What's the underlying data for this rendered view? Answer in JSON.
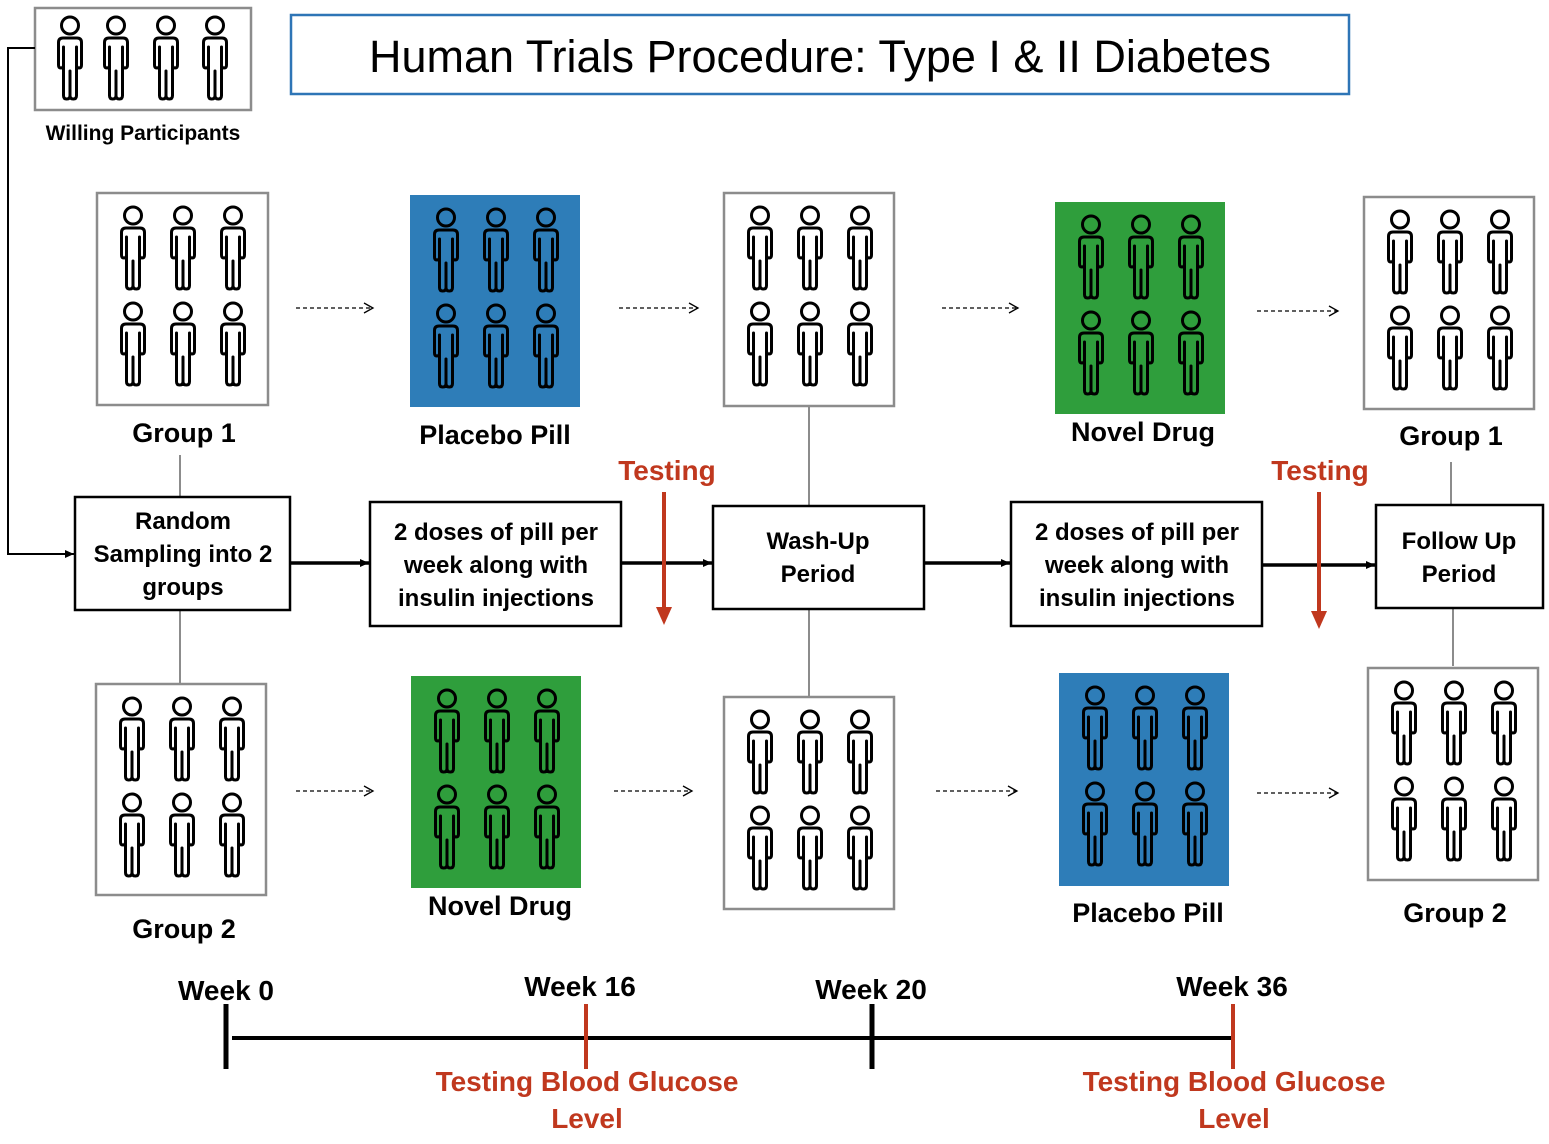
{
  "title": "Human Trials Procedure: Type I & II Diabetes",
  "participants_label": "Willing Participants",
  "group_labels": {
    "group1_start": "Group 1",
    "group2_start": "Group 2",
    "group1_end": "Group 1",
    "group2_end": "Group 2"
  },
  "treatment_labels": {
    "top_first": "Placebo Pill",
    "top_second": "Novel Drug",
    "bottom_first": "Novel Drug",
    "bottom_second": "Placebo Pill"
  },
  "process_steps": {
    "random_sampling": [
      "Random",
      "Sampling into 2",
      "groups"
    ],
    "dosing_1": [
      "2 doses of pill per",
      "week along with",
      "insulin injections"
    ],
    "washup": [
      "Wash-Up",
      "Period"
    ],
    "dosing_2": [
      "2 doses of pill per",
      "week along with",
      "insulin injections"
    ],
    "followup": [
      "Follow Up",
      "Period"
    ]
  },
  "testing_label": "Testing",
  "timeline": {
    "weeks": [
      "Week 0",
      "Week 16",
      "Week 20",
      "Week 36"
    ],
    "testing_note": [
      "Testing Blood Glucose",
      "Level"
    ]
  },
  "colors": {
    "placebo": "#2E7DB8",
    "novel": "#2F9E3C",
    "testing": "#C0381E",
    "title_border": "#2E75B6"
  }
}
